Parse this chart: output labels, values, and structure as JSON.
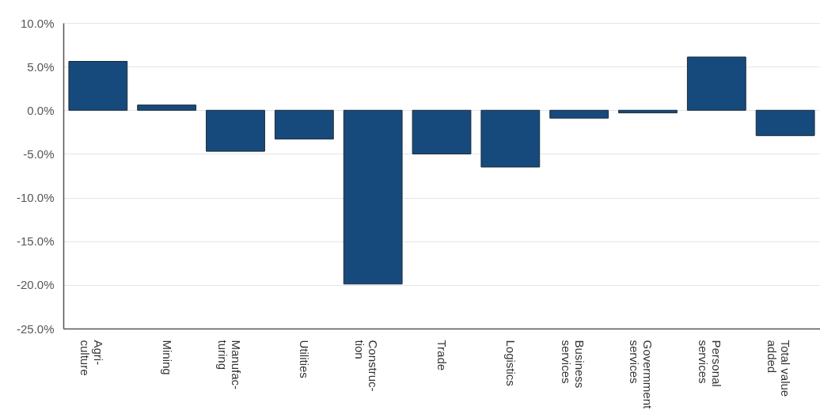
{
  "chart_data": {
    "type": "bar",
    "categories": [
      "Agri-\nculture",
      "Mining",
      "Manufac-\nturing",
      "Utilities",
      "Construc-\ntion",
      "Trade",
      "Logistics",
      "Business\nservices",
      "Govermment\nservices",
      "Personal\nservices",
      "Total value\nadded"
    ],
    "values": [
      5.6,
      0.6,
      -4.7,
      -3.3,
      -19.9,
      -5.0,
      -6.5,
      -0.9,
      -0.3,
      6.1,
      -2.9
    ],
    "color": "#174a7c",
    "ylim": [
      -25,
      10
    ],
    "yticks": [
      {
        "value": -25,
        "label": "-25.0%"
      },
      {
        "value": -20,
        "label": "-20.0%"
      },
      {
        "value": -15,
        "label": "-15.0%"
      },
      {
        "value": -10,
        "label": "-10.0%"
      },
      {
        "value": -5,
        "label": "-5.0%"
      },
      {
        "value": 0,
        "label": "0.0%"
      },
      {
        "value": 5,
        "label": "5.0%"
      },
      {
        "value": 10,
        "label": "10.0%"
      }
    ],
    "grid": "y"
  }
}
